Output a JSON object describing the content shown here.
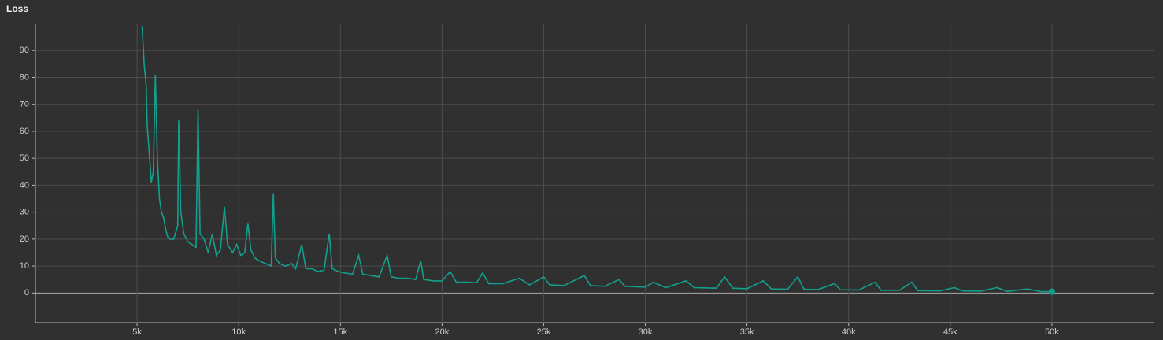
{
  "chart_data": {
    "type": "line",
    "title": "Loss",
    "x": [
      5250,
      5350,
      5450,
      5500,
      5600,
      5700,
      5800,
      5900,
      6000,
      6100,
      6200,
      6300,
      6400,
      6500,
      6600,
      6800,
      7000,
      7050,
      7150,
      7300,
      7500,
      7700,
      7900,
      8000,
      8100,
      8300,
      8500,
      8700,
      8900,
      9100,
      9300,
      9450,
      9700,
      9900,
      10100,
      10300,
      10450,
      10600,
      10800,
      11000,
      11300,
      11600,
      11700,
      11800,
      12000,
      12300,
      12600,
      12800,
      13100,
      13300,
      13600,
      13900,
      14200,
      14450,
      14600,
      14900,
      15200,
      15600,
      15900,
      16100,
      16500,
      16900,
      17300,
      17500,
      17900,
      18300,
      18700,
      18950,
      19100,
      19600,
      20000,
      20400,
      20700,
      21200,
      21700,
      22000,
      22300,
      23000,
      23800,
      24300,
      25000,
      25300,
      26000,
      27000,
      27300,
      28000,
      28700,
      29000,
      30000,
      30400,
      31000,
      32000,
      32400,
      33500,
      33900,
      34300,
      35000,
      35800,
      36200,
      37000,
      37500,
      37800,
      38500,
      39300,
      39600,
      40500,
      41300,
      41600,
      42500,
      43100,
      43400,
      44500,
      45200,
      45600,
      46500,
      47300,
      47800,
      48800,
      49500,
      50000
    ],
    "series": [
      {
        "name": "Loss",
        "color": "#12a08e",
        "values": [
          99,
          85,
          77,
          62,
          52,
          41,
          45,
          81,
          50,
          35,
          30,
          28,
          24,
          21,
          20,
          20,
          25,
          64,
          30,
          22,
          19,
          18,
          17,
          68,
          22,
          20,
          15,
          22,
          14,
          16,
          32,
          18,
          15,
          18,
          14,
          15,
          26,
          16,
          13,
          12,
          11,
          10,
          37,
          13,
          11,
          10,
          11,
          9,
          18,
          9,
          9,
          8,
          8.5,
          22,
          9,
          8,
          7.5,
          7,
          14,
          7,
          6.5,
          6,
          14,
          6,
          5.5,
          5.5,
          5,
          12,
          5,
          4.5,
          4.5,
          8,
          4,
          4,
          3.8,
          7.5,
          3.5,
          3.5,
          5.5,
          3,
          6,
          3,
          2.8,
          6.5,
          2.8,
          2.5,
          5,
          2.5,
          2.2,
          4,
          2,
          4.5,
          2,
          1.8,
          6,
          1.8,
          1.6,
          4.5,
          1.5,
          1.4,
          6,
          1.4,
          1.3,
          3.5,
          1.2,
          1.1,
          4,
          1,
          1,
          4,
          0.9,
          0.8,
          2,
          0.8,
          0.7,
          2,
          0.6,
          1.5,
          0.5,
          0.5
        ]
      }
    ],
    "xlim": [
      0,
      55000
    ],
    "xticks": [
      {
        "value": 5000,
        "label": "5k"
      },
      {
        "value": 10000,
        "label": "10k"
      },
      {
        "value": 15000,
        "label": "15k"
      },
      {
        "value": 20000,
        "label": "20k"
      },
      {
        "value": 25000,
        "label": "25k"
      },
      {
        "value": 30000,
        "label": "30k"
      },
      {
        "value": 35000,
        "label": "35k"
      },
      {
        "value": 40000,
        "label": "40k"
      },
      {
        "value": 45000,
        "label": "45k"
      },
      {
        "value": 50000,
        "label": "50k"
      }
    ],
    "ylim": [
      -11,
      100
    ],
    "yticks": [
      0,
      10,
      20,
      30,
      40,
      50,
      60,
      70,
      80,
      90
    ],
    "grid": true
  }
}
